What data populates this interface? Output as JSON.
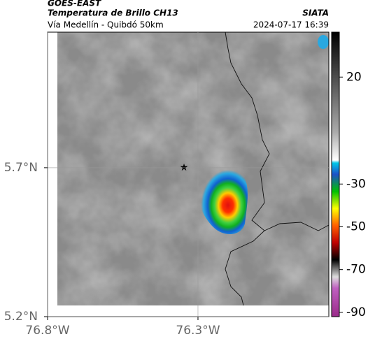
{
  "header": {
    "title": "GOES-EAST",
    "subtitle": "Temperatura de Brillo CH13",
    "source": "SIATA",
    "route": "Vía Medellín - Quibdó 50km",
    "datetime": "2024-07-17 16:39"
  },
  "map": {
    "xlim": [
      -76.8,
      -75.865
    ],
    "ylim": [
      5.2,
      6.155
    ],
    "xticks": [
      {
        "value": -76.8,
        "label": "76.8°W"
      },
      {
        "value": -76.3,
        "label": "76.3°W"
      }
    ],
    "yticks": [
      {
        "value": 5.7,
        "label": "5.7°N"
      },
      {
        "value": 5.2,
        "label": "5.2°N"
      }
    ]
  },
  "colorbar": {
    "lim": [
      -92,
      41
    ],
    "ticks": [
      20,
      -30,
      -50,
      -70,
      -90
    ]
  }
}
